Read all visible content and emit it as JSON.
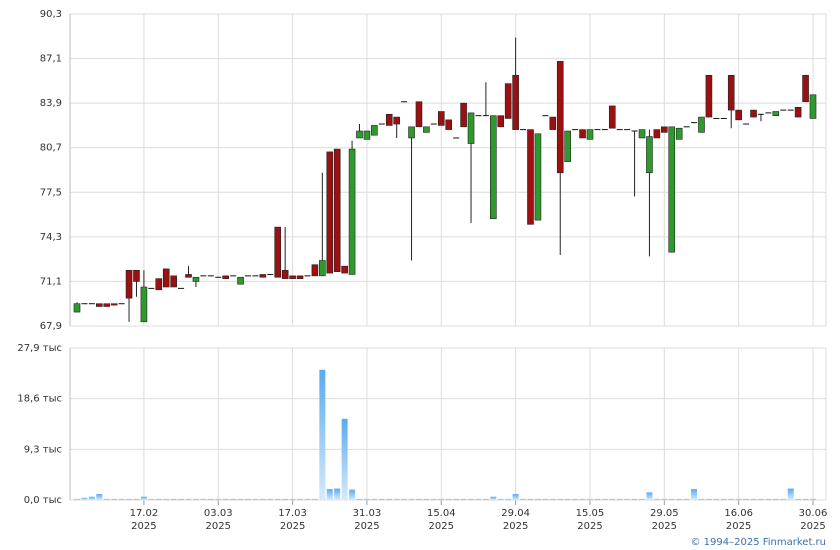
{
  "chart_data": [
    {
      "type": "candlestick",
      "categories": [
        null,
        null,
        null,
        null,
        null,
        null,
        null,
        null,
        null,
        "17.02",
        null,
        null,
        null,
        null,
        null,
        null,
        null,
        null,
        null,
        "03.03",
        null,
        null,
        null,
        null,
        null,
        null,
        null,
        null,
        null,
        "17.03",
        null,
        null,
        null,
        null,
        null,
        null,
        null,
        null,
        null,
        "31.03",
        null,
        null,
        null,
        null,
        null,
        null,
        null,
        null,
        null,
        "15.04",
        null,
        null,
        null,
        null,
        null,
        null,
        null,
        null,
        null,
        "29.04",
        null,
        null,
        null,
        null,
        null,
        null,
        null,
        null,
        null,
        "15.05",
        null,
        null,
        null,
        null,
        null,
        null,
        null,
        null,
        null,
        "29.05",
        null,
        null,
        null,
        null,
        null,
        null,
        null,
        null,
        null,
        "16.06",
        null,
        null,
        null,
        null,
        null,
        null,
        null,
        null,
        null,
        "30.06"
      ],
      "category_year": "2025",
      "ohlc": [
        [
          68.9,
          69.6,
          68.9,
          69.5
        ],
        [
          69.5,
          69.5,
          69.5,
          69.5
        ],
        [
          69.5,
          69.5,
          69.5,
          69.5
        ],
        [
          69.5,
          69.5,
          69.3,
          69.3
        ],
        [
          69.5,
          69.5,
          69.3,
          69.3
        ],
        [
          69.5,
          69.5,
          69.4,
          69.4
        ],
        [
          69.5,
          69.5,
          69.5,
          69.5
        ],
        [
          71.9,
          71.9,
          68.2,
          69.9
        ],
        [
          71.9,
          71.9,
          70.0,
          71.1
        ],
        [
          68.2,
          71.9,
          68.2,
          70.7
        ],
        [
          70.6,
          70.6,
          70.6,
          70.6
        ],
        [
          71.3,
          71.3,
          70.5,
          70.5
        ],
        [
          72.0,
          72.0,
          70.7,
          70.7
        ],
        [
          71.5,
          71.5,
          70.7,
          70.7
        ],
        [
          70.6,
          70.6,
          70.6,
          70.6
        ],
        [
          71.6,
          72.2,
          71.4,
          71.4
        ],
        [
          71.1,
          71.4,
          70.7,
          71.4
        ],
        [
          71.5,
          71.5,
          71.5,
          71.5
        ],
        [
          71.5,
          71.5,
          71.5,
          71.5
        ],
        [
          71.4,
          71.4,
          71.4,
          71.4
        ],
        [
          71.5,
          71.5,
          71.3,
          71.3
        ],
        [
          71.5,
          71.5,
          71.5,
          71.5
        ],
        [
          70.9,
          71.4,
          70.9,
          71.4
        ],
        [
          71.5,
          71.5,
          71.5,
          71.5
        ],
        [
          71.5,
          71.5,
          71.5,
          71.5
        ],
        [
          71.6,
          71.6,
          71.4,
          71.4
        ],
        [
          71.6,
          71.6,
          71.6,
          71.6
        ],
        [
          75.0,
          75.0,
          71.4,
          71.4
        ],
        [
          71.9,
          75.0,
          71.3,
          71.3
        ],
        [
          71.5,
          71.5,
          71.3,
          71.3
        ],
        [
          71.5,
          71.5,
          71.3,
          71.3
        ],
        [
          71.5,
          71.5,
          71.5,
          71.5
        ],
        [
          72.3,
          72.3,
          71.5,
          71.5
        ],
        [
          71.5,
          78.9,
          71.5,
          72.6
        ],
        [
          80.4,
          80.4,
          71.7,
          71.7
        ],
        [
          80.6,
          80.6,
          71.8,
          71.8
        ],
        [
          72.2,
          72.2,
          71.7,
          71.7
        ],
        [
          71.6,
          81.2,
          71.6,
          80.6
        ],
        [
          81.4,
          82.4,
          81.4,
          81.9
        ],
        [
          81.3,
          81.9,
          81.3,
          81.9
        ],
        [
          81.6,
          82.3,
          81.6,
          82.3
        ],
        [
          82.4,
          82.4,
          82.4,
          82.4
        ],
        [
          83.1,
          83.1,
          82.3,
          82.3
        ],
        [
          82.9,
          82.9,
          81.4,
          82.4
        ],
        [
          84.0,
          84.0,
          84.0,
          84.0
        ],
        [
          81.4,
          82.2,
          72.6,
          82.2
        ],
        [
          84.0,
          84.0,
          82.2,
          82.2
        ],
        [
          81.8,
          82.2,
          81.8,
          82.2
        ],
        [
          82.4,
          82.4,
          82.4,
          82.4
        ],
        [
          83.3,
          83.3,
          82.3,
          82.3
        ],
        [
          82.7,
          82.7,
          82.0,
          82.0
        ],
        [
          81.4,
          81.4,
          81.4,
          81.4
        ],
        [
          83.9,
          83.9,
          82.2,
          82.2
        ],
        [
          81.0,
          83.2,
          75.3,
          83.2
        ],
        [
          83.0,
          83.0,
          83.0,
          83.0
        ],
        [
          83.0,
          85.4,
          83.0,
          83.0
        ],
        [
          75.6,
          83.0,
          75.6,
          83.0
        ],
        [
          83.0,
          83.0,
          82.2,
          82.2
        ],
        [
          85.3,
          85.3,
          82.8,
          82.8
        ],
        [
          85.9,
          88.6,
          82.0,
          82.0
        ],
        [
          82.0,
          82.0,
          82.0,
          82.0
        ],
        [
          82.0,
          82.0,
          75.2,
          75.2
        ],
        [
          75.5,
          81.7,
          75.5,
          81.7
        ],
        [
          83.0,
          83.0,
          83.0,
          83.0
        ],
        [
          82.9,
          82.9,
          82.0,
          82.0
        ],
        [
          86.9,
          86.9,
          73.0,
          78.9
        ],
        [
          79.7,
          81.9,
          79.7,
          81.9
        ],
        [
          82.0,
          82.0,
          82.0,
          82.0
        ],
        [
          82.0,
          82.0,
          81.4,
          81.4
        ],
        [
          81.3,
          82.0,
          81.3,
          82.0
        ],
        [
          82.0,
          82.0,
          82.0,
          82.0
        ],
        [
          82.0,
          82.0,
          82.0,
          82.0
        ],
        [
          83.7,
          83.7,
          82.1,
          82.1
        ],
        [
          82.0,
          82.0,
          82.0,
          82.0
        ],
        [
          82.0,
          82.0,
          82.0,
          82.0
        ],
        [
          81.9,
          81.9,
          77.2,
          81.9
        ],
        [
          81.4,
          82.0,
          81.4,
          82.0
        ],
        [
          78.9,
          82.0,
          72.9,
          81.5
        ],
        [
          82.0,
          82.0,
          81.4,
          81.4
        ],
        [
          82.2,
          82.2,
          81.8,
          81.8
        ],
        [
          73.2,
          82.2,
          73.2,
          82.2
        ],
        [
          81.3,
          82.1,
          81.3,
          82.1
        ],
        [
          82.2,
          82.2,
          82.2,
          82.2
        ],
        [
          82.5,
          82.5,
          82.5,
          82.5
        ],
        [
          81.8,
          82.9,
          81.8,
          82.9
        ],
        [
          85.9,
          85.9,
          82.9,
          82.9
        ],
        [
          82.8,
          82.8,
          82.8,
          82.8
        ],
        [
          82.8,
          82.8,
          82.8,
          82.8
        ],
        [
          85.9,
          85.9,
          82.1,
          83.4
        ],
        [
          83.4,
          83.4,
          82.7,
          82.7
        ],
        [
          82.4,
          82.4,
          82.4,
          82.4
        ],
        [
          83.4,
          83.4,
          82.9,
          82.9
        ],
        [
          83.1,
          83.1,
          82.6,
          83.1
        ],
        [
          83.2,
          83.2,
          83.2,
          83.2
        ],
        [
          83.0,
          83.3,
          83.0,
          83.3
        ],
        [
          83.4,
          83.4,
          83.4,
          83.4
        ],
        [
          83.4,
          83.4,
          83.4,
          83.4
        ],
        [
          83.6,
          83.6,
          82.9,
          82.9
        ],
        [
          85.9,
          85.9,
          84.0,
          84.0
        ],
        [
          82.8,
          84.5,
          82.8,
          84.5
        ]
      ],
      "up_color": "#2e9a2e",
      "down_color": "#9b1010",
      "ylim": [
        67.9,
        90.3
      ],
      "yticks": [
        {
          "value": 67.9,
          "label": "67,9"
        },
        {
          "value": 71.1,
          "label": "71,1"
        },
        {
          "value": 74.3,
          "label": "74,3"
        },
        {
          "value": 77.5,
          "label": "77,5"
        },
        {
          "value": 80.7,
          "label": "80,7"
        },
        {
          "value": 83.9,
          "label": "83,9"
        },
        {
          "value": 87.1,
          "label": "87,1"
        },
        {
          "value": 90.3,
          "label": "90,3"
        }
      ],
      "grid": true
    },
    {
      "type": "bar",
      "values": [
        0.2,
        0.4,
        0.6,
        1.1,
        0.2,
        0.2,
        0.2,
        0.2,
        0.2,
        0.6,
        0.2,
        0.2,
        0.2,
        0.2,
        0.2,
        0.2,
        0.2,
        0.2,
        0.2,
        0.2,
        0.2,
        0.2,
        0.2,
        0.2,
        0.2,
        0.2,
        0.2,
        0.2,
        0.2,
        0.2,
        0.2,
        0.2,
        0.2,
        23.9,
        2.0,
        2.1,
        14.9,
        1.9,
        0.2,
        0.2,
        0.2,
        0.2,
        0.2,
        0.2,
        0.2,
        0.2,
        0.2,
        0.2,
        0.2,
        0.2,
        0.2,
        0.2,
        0.2,
        0.2,
        0.2,
        0.2,
        0.6,
        0.2,
        0.2,
        1.1,
        0.2,
        0.2,
        0.2,
        0.2,
        0.2,
        0.2,
        0.2,
        0.2,
        0.2,
        0.2,
        0.2,
        0.2,
        0.2,
        0.2,
        0.2,
        0.2,
        0.2,
        1.4,
        0.2,
        0.2,
        0.2,
        0.2,
        0.2,
        2.0,
        0.2,
        0.2,
        0.2,
        0.2,
        0.2,
        0.2,
        0.2,
        0.2,
        0.2,
        0.2,
        0.2,
        0.2,
        2.1,
        0.2,
        0.2,
        0.2
      ],
      "color": "#7fbdf0",
      "ylim": [
        0,
        27.9
      ],
      "yticks": [
        {
          "value": 0,
          "label": "0,0 тыс"
        },
        {
          "value": 9.3,
          "label": "9,3 тыс"
        },
        {
          "value": 18.6,
          "label": "18,6 тыс"
        },
        {
          "value": 27.9,
          "label": "27,9 тыс"
        }
      ],
      "grid": true
    }
  ],
  "footer": "© 1994–2025 Finmarket.ru"
}
